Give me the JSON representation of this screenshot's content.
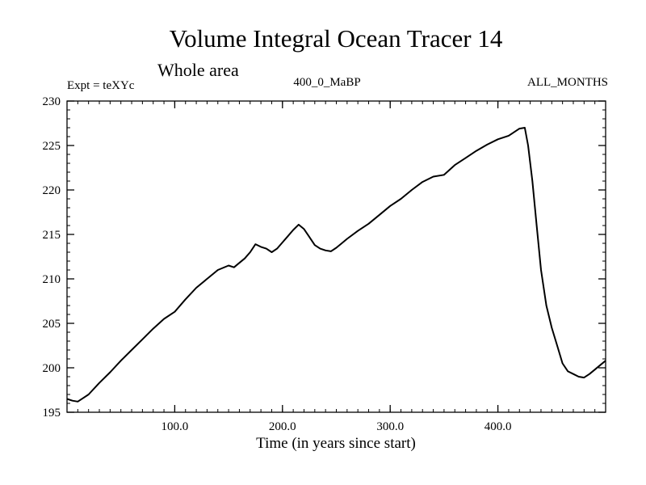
{
  "chart_data": {
    "type": "line",
    "title": "Volume Integral Ocean Tracer 14",
    "subtitle": "Whole area",
    "header_left": "Expt = teXYc",
    "header_center": "400_0_MaBP",
    "header_right": "ALL_MONTHS",
    "xlabel": "Time (in years since start)",
    "ylabel": "",
    "xlim": [
      0,
      500
    ],
    "ylim": [
      195,
      230
    ],
    "xticks": [
      100,
      200,
      300,
      400
    ],
    "xtick_labels": [
      "100.0",
      "200.0",
      "300.0",
      "400.0"
    ],
    "yticks": [
      195,
      200,
      205,
      210,
      215,
      220,
      225,
      230
    ],
    "ytick_labels": [
      "195",
      "200",
      "205",
      "210",
      "215",
      "220",
      "225",
      "230"
    ],
    "grid": false,
    "line_color": "#000000",
    "series": [
      {
        "x": [
          0,
          5,
          10,
          15,
          20,
          30,
          40,
          50,
          60,
          70,
          80,
          90,
          100,
          110,
          120,
          130,
          140,
          150,
          155,
          160,
          165,
          170,
          175,
          180,
          185,
          190,
          195,
          200,
          205,
          210,
          215,
          220,
          225,
          230,
          235,
          240,
          245,
          250,
          255,
          260,
          270,
          280,
          290,
          300,
          310,
          320,
          330,
          340,
          350,
          360,
          370,
          380,
          390,
          400,
          410,
          420,
          425,
          428,
          432,
          436,
          440,
          445,
          450,
          455,
          460,
          465,
          470,
          475,
          480,
          485,
          490,
          495,
          500
        ],
        "y": [
          196.5,
          196.3,
          196.2,
          196.6,
          197.0,
          198.3,
          199.5,
          200.8,
          202.0,
          203.2,
          204.4,
          205.5,
          206.3,
          207.7,
          209.0,
          210.0,
          211.0,
          211.5,
          211.3,
          211.8,
          212.3,
          213.0,
          213.9,
          213.6,
          213.4,
          213.0,
          213.4,
          214.1,
          214.8,
          215.5,
          216.1,
          215.6,
          214.7,
          213.8,
          213.4,
          213.2,
          213.1,
          213.5,
          214.0,
          214.5,
          215.4,
          216.2,
          217.2,
          218.2,
          219.0,
          220.0,
          220.9,
          221.5,
          221.7,
          222.8,
          223.6,
          224.4,
          225.1,
          225.7,
          226.1,
          226.9,
          227.0,
          225.0,
          221.0,
          216.0,
          211.0,
          207.0,
          204.5,
          202.5,
          200.5,
          199.6,
          199.3,
          199.0,
          198.9,
          199.3,
          199.8,
          200.3,
          200.8
        ]
      }
    ]
  }
}
